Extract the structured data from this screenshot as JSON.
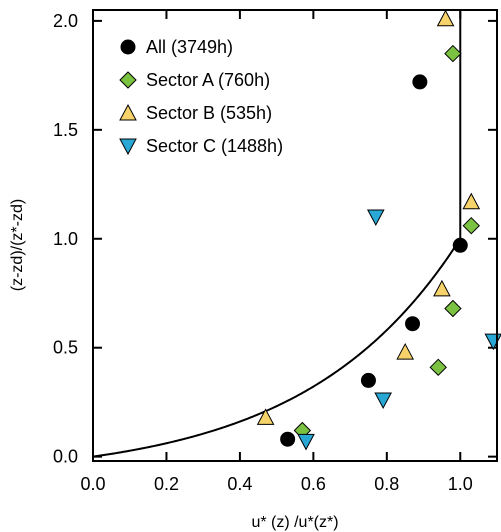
{
  "chart_data": {
    "type": "scatter",
    "xlabel": "u* (z) /u*(z*)",
    "ylabel": "(z-zd)/(z*-zd)",
    "xlim": [
      0.0,
      1.1
    ],
    "ylim": [
      -0.02,
      2.05
    ],
    "xticks": [
      "0.0",
      "0.2",
      "0.4",
      "0.6",
      "0.8",
      "1.0"
    ],
    "yticks": [
      "0.0",
      "0.5",
      "1.0",
      "1.5",
      "2.0"
    ],
    "legend_position": "top-left",
    "series": [
      {
        "name": "All (3749h)",
        "marker": "circle",
        "color": "#000000",
        "points": [
          [
            0.53,
            0.08
          ],
          [
            0.75,
            0.35
          ],
          [
            0.87,
            0.61
          ],
          [
            1.0,
            0.97
          ],
          [
            0.89,
            1.72
          ]
        ]
      },
      {
        "name": "Sector A (760h)",
        "marker": "diamond",
        "color": "#7cc242",
        "points": [
          [
            0.57,
            0.12
          ],
          [
            0.94,
            0.41
          ],
          [
            0.98,
            0.68
          ],
          [
            1.03,
            1.06
          ],
          [
            0.98,
            1.85
          ]
        ]
      },
      {
        "name": "Sector B (535h)",
        "marker": "triangle-up",
        "color": "#f5d36a",
        "points": [
          [
            0.47,
            0.18
          ],
          [
            0.85,
            0.48
          ],
          [
            0.95,
            0.77
          ],
          [
            1.03,
            1.17
          ],
          [
            0.96,
            2.01
          ]
        ]
      },
      {
        "name": "Sector C (1488h)",
        "marker": "triangle-down",
        "color": "#29a8d6",
        "points": [
          [
            0.58,
            0.07
          ],
          [
            0.79,
            0.26
          ],
          [
            1.09,
            0.53
          ],
          [
            0.77,
            1.1
          ]
        ]
      }
    ],
    "fit_curve": {
      "type": "log-profile",
      "color": "#000000"
    },
    "reference_line_x": 1.0
  }
}
